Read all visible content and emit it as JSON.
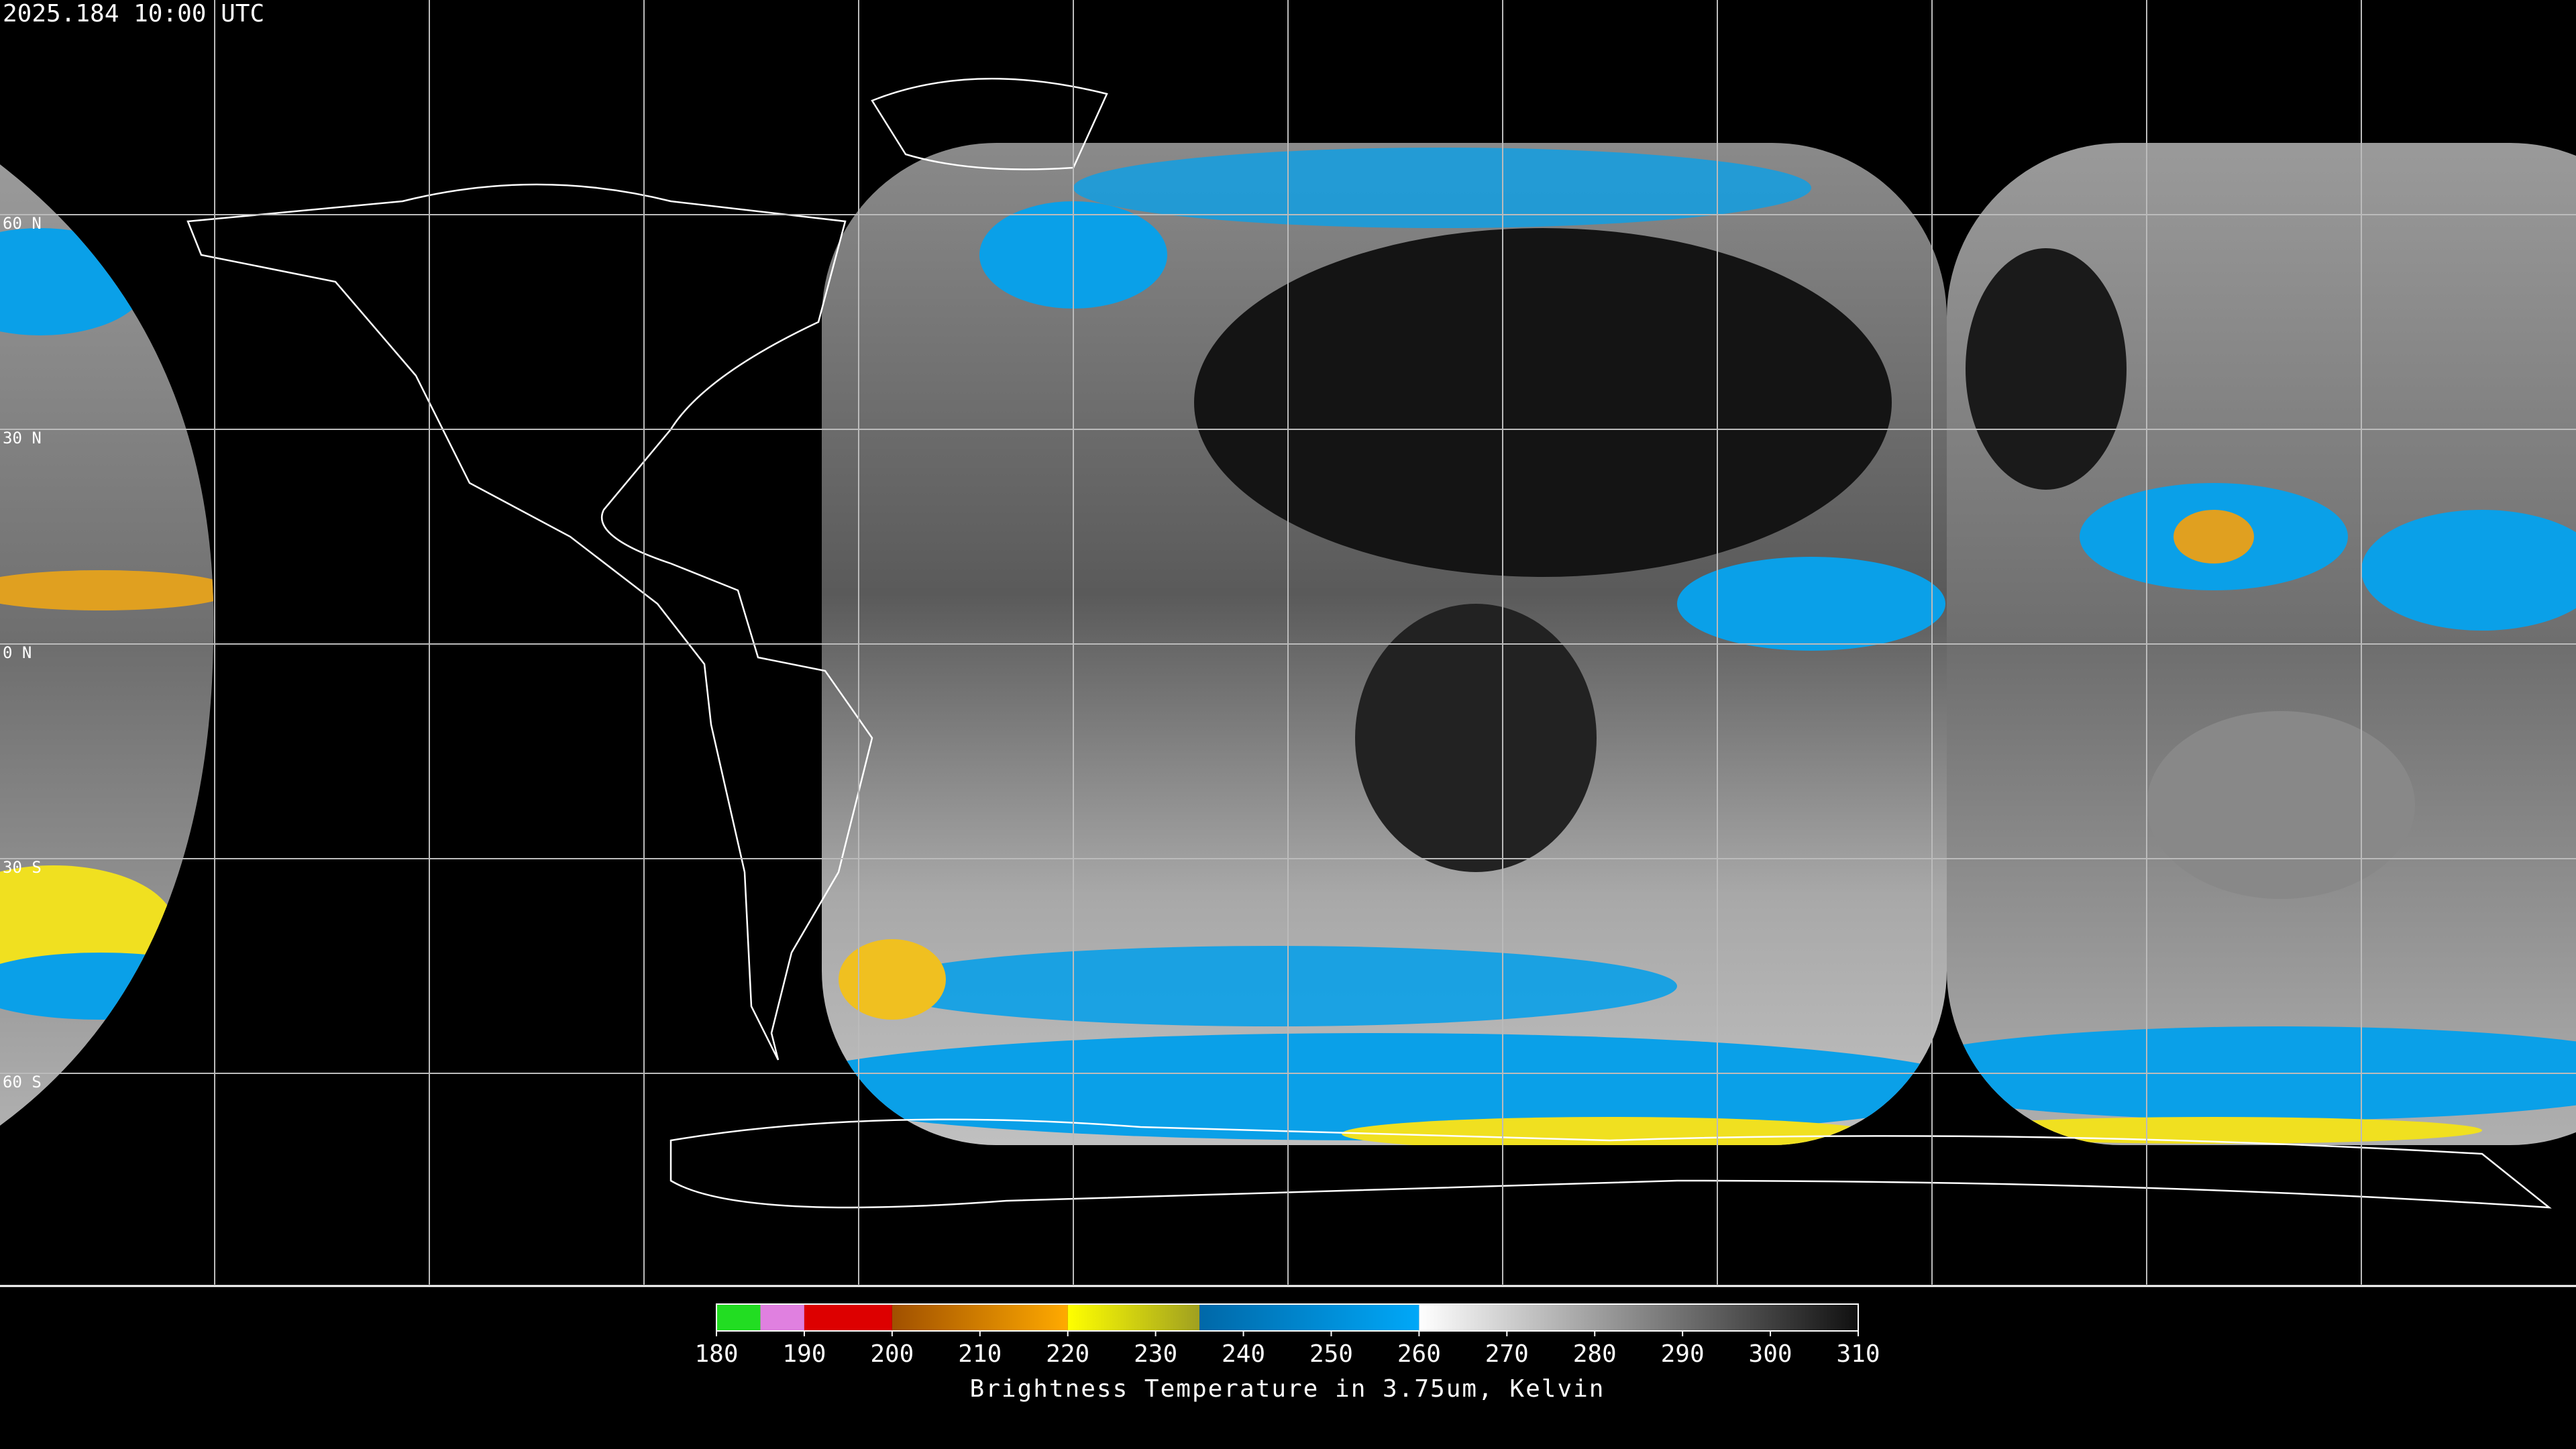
{
  "map": {
    "timestamp": "2025.184 10:00 UTC",
    "lat_labels": [
      "60 N",
      "30 N",
      "0 N",
      "30 S",
      "60 S"
    ],
    "colorbar": {
      "title": "Brightness Temperature in 3.75um, Kelvin",
      "range": [
        180,
        310
      ],
      "ticks": [
        180,
        190,
        200,
        210,
        220,
        230,
        240,
        250,
        260,
        270,
        280,
        290,
        300,
        310
      ],
      "segments": [
        {
          "from": 180,
          "to": 185,
          "color_from": "#22dd22",
          "color_to": "#22dd22"
        },
        {
          "from": 185,
          "to": 190,
          "color_from": "#e080e0",
          "color_to": "#e080e0"
        },
        {
          "from": 190,
          "to": 200,
          "color_from": "#dd0000",
          "color_to": "#dd0000"
        },
        {
          "from": 200,
          "to": 220,
          "color_from": "#a05000",
          "color_to": "#ffaa00"
        },
        {
          "from": 220,
          "to": 235,
          "color_from": "#ffff00",
          "color_to": "#a0a020"
        },
        {
          "from": 235,
          "to": 260,
          "color_from": "#0068a8",
          "color_to": "#00a8f8"
        },
        {
          "from": 260,
          "to": 310,
          "color_from": "#ffffff",
          "color_to": "#101010"
        }
      ]
    }
  }
}
